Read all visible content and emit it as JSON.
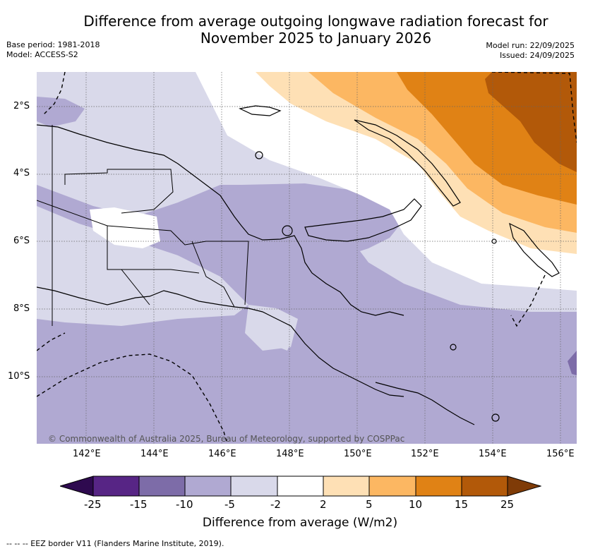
{
  "title": {
    "line1": "Difference from average outgoing longwave radiation forecast for",
    "line2": "November 2025 to January 2026"
  },
  "meta": {
    "base_period": "Base period: 1981-2018",
    "model": "Model: ACCESS-S2",
    "model_run": "Model run: 22/09/2025",
    "issued": "Issued: 24/09/2025"
  },
  "axes": {
    "lat_labels": [
      "2°S",
      "4°S",
      "6°S",
      "8°S",
      "10°S"
    ],
    "lon_labels": [
      "142°E",
      "144°E",
      "146°E",
      "148°E",
      "150°E",
      "152°E",
      "154°E",
      "156°E"
    ]
  },
  "copyright": "© Commonwealth of Australia 2025, Bureau of Meteorology, supported by COSPPac",
  "colorbar": {
    "title": "Difference from average (W/m2)",
    "tick_labels": [
      "-25",
      "-15",
      "-10",
      "-5",
      "-2",
      "2",
      "5",
      "10",
      "15",
      "25"
    ],
    "colors": {
      "below_min": "#2e0a4f",
      "c1": "#572585",
      "c2": "#7d6ca8",
      "c3": "#b0a9d2",
      "c4": "#d9d9ea",
      "c5": "#ffffff",
      "c6": "#fee0b5",
      "c7": "#fcb762",
      "c8": "#e08215",
      "c9": "#b25909",
      "above_max": "#7f3b07"
    }
  },
  "footer": "-- -- -- EEZ border V11 (Flanders Marine Institute, 2019)."
}
